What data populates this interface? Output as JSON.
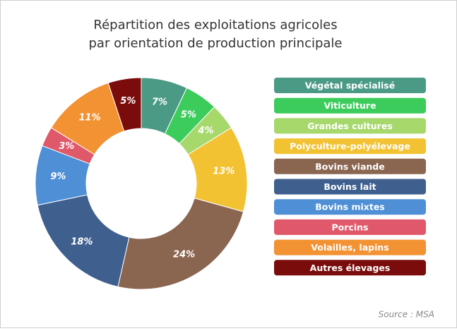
{
  "chart_data": {
    "type": "donut",
    "title": [
      "Répartition des exploitations agricoles",
      "par orientation de production principale"
    ],
    "categories": [
      "Végétal spécialisé",
      "Viticulture",
      "Grandes cultures",
      "Polyculture-polyélevage",
      "Bovins viande",
      "Bovins lait",
      "Bovins mixtes",
      "Porcins",
      "Volailles, lapins",
      "Autres élevages"
    ],
    "values": [
      7,
      5,
      4,
      13,
      24,
      18,
      9,
      3,
      11,
      5
    ],
    "value_labels": [
      "7%",
      "5%",
      "4%",
      "13%",
      "24%",
      "18%",
      "9%",
      "3%",
      "11%",
      "5%"
    ],
    "colors": [
      "#4a9a86",
      "#3ccc5c",
      "#a6d86c",
      "#f2c233",
      "#8a6550",
      "#3f5f8e",
      "#4f8fd6",
      "#e0596a",
      "#f29233",
      "#7a0c0c"
    ],
    "legend": "right",
    "source": "Source : MSA"
  }
}
